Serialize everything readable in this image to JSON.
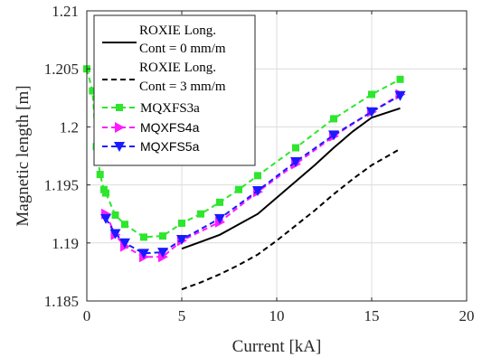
{
  "chart_data": {
    "type": "line",
    "title": "",
    "xlabel": "Current [kA]",
    "ylabel": "Magnetic length [m]",
    "xlim": [
      0,
      20
    ],
    "ylim": [
      1.185,
      1.21
    ],
    "xticks": [
      0,
      5,
      10,
      15,
      20
    ],
    "xtick_labels": [
      "0",
      "5",
      "10",
      "15",
      "20"
    ],
    "yticks": [
      1.185,
      1.19,
      1.195,
      1.2,
      1.205,
      1.21
    ],
    "ytick_labels": [
      "1.185",
      "1.19",
      "1.195",
      "1.2",
      "1.205",
      "1.21"
    ],
    "grid": true,
    "legend_position": "top-left",
    "series": [
      {
        "name": "ROXIE Long.",
        "name_line2": "Cont = 0 mm/m",
        "style": "solid",
        "marker": "none",
        "color": "#000000",
        "x": [
          5,
          6,
          7,
          8,
          9,
          10,
          11,
          12,
          13,
          14,
          15,
          16.5
        ],
        "y": [
          1.1895,
          1.1901,
          1.1907,
          1.1916,
          1.1925,
          1.1939,
          1.1953,
          1.1967,
          1.1982,
          1.1996,
          1.2008,
          1.2016
        ]
      },
      {
        "name": "ROXIE Long.",
        "name_line2": "Cont = 3 mm/m",
        "style": "dashed",
        "marker": "none",
        "color": "#000000",
        "x": [
          5,
          6,
          7,
          8,
          9,
          10,
          11,
          12,
          13,
          14,
          15,
          16.5
        ],
        "y": [
          1.186,
          1.1866,
          1.1873,
          1.1881,
          1.189,
          1.1902,
          1.1915,
          1.1928,
          1.1942,
          1.1955,
          1.1967,
          1.1981
        ]
      },
      {
        "name": "MQXFS3a",
        "style": "dashed",
        "marker": "square",
        "color": "#2de62d",
        "x": [
          0,
          0.3,
          0.5,
          0.7,
          0.9,
          1,
          1.5,
          2,
          3,
          4,
          5,
          6,
          7,
          8,
          9,
          11,
          13,
          15,
          16.5
        ],
        "y": [
          1.205,
          1.2031,
          1.1983,
          1.1959,
          1.1946,
          1.1943,
          1.1924,
          1.1916,
          1.1905,
          1.1906,
          1.1917,
          1.1925,
          1.1935,
          1.1946,
          1.1958,
          1.1982,
          1.2007,
          1.2028,
          1.2041
        ]
      },
      {
        "name": "MQXFS4a",
        "style": "dashed",
        "marker": "triangle-right",
        "color": "#ff1aff",
        "x": [
          1,
          1.5,
          2,
          3,
          4,
          5,
          7,
          9,
          11,
          13,
          15,
          16.5
        ],
        "y": [
          1.1925,
          1.1907,
          1.1897,
          1.1888,
          1.1888,
          1.1902,
          1.1918,
          1.1944,
          1.1968,
          1.1992,
          1.2013,
          1.2028
        ]
      },
      {
        "name": "MQXFS5a",
        "style": "dashed",
        "marker": "triangle-down",
        "color": "#1a1aff",
        "x": [
          1,
          1.5,
          2,
          3,
          4,
          5,
          7,
          9,
          11,
          13,
          15,
          16.5
        ],
        "y": [
          1.1921,
          1.1908,
          1.19,
          1.1891,
          1.1892,
          1.1903,
          1.1921,
          1.1945,
          1.197,
          1.1993,
          1.2013,
          1.2027
        ]
      }
    ]
  }
}
